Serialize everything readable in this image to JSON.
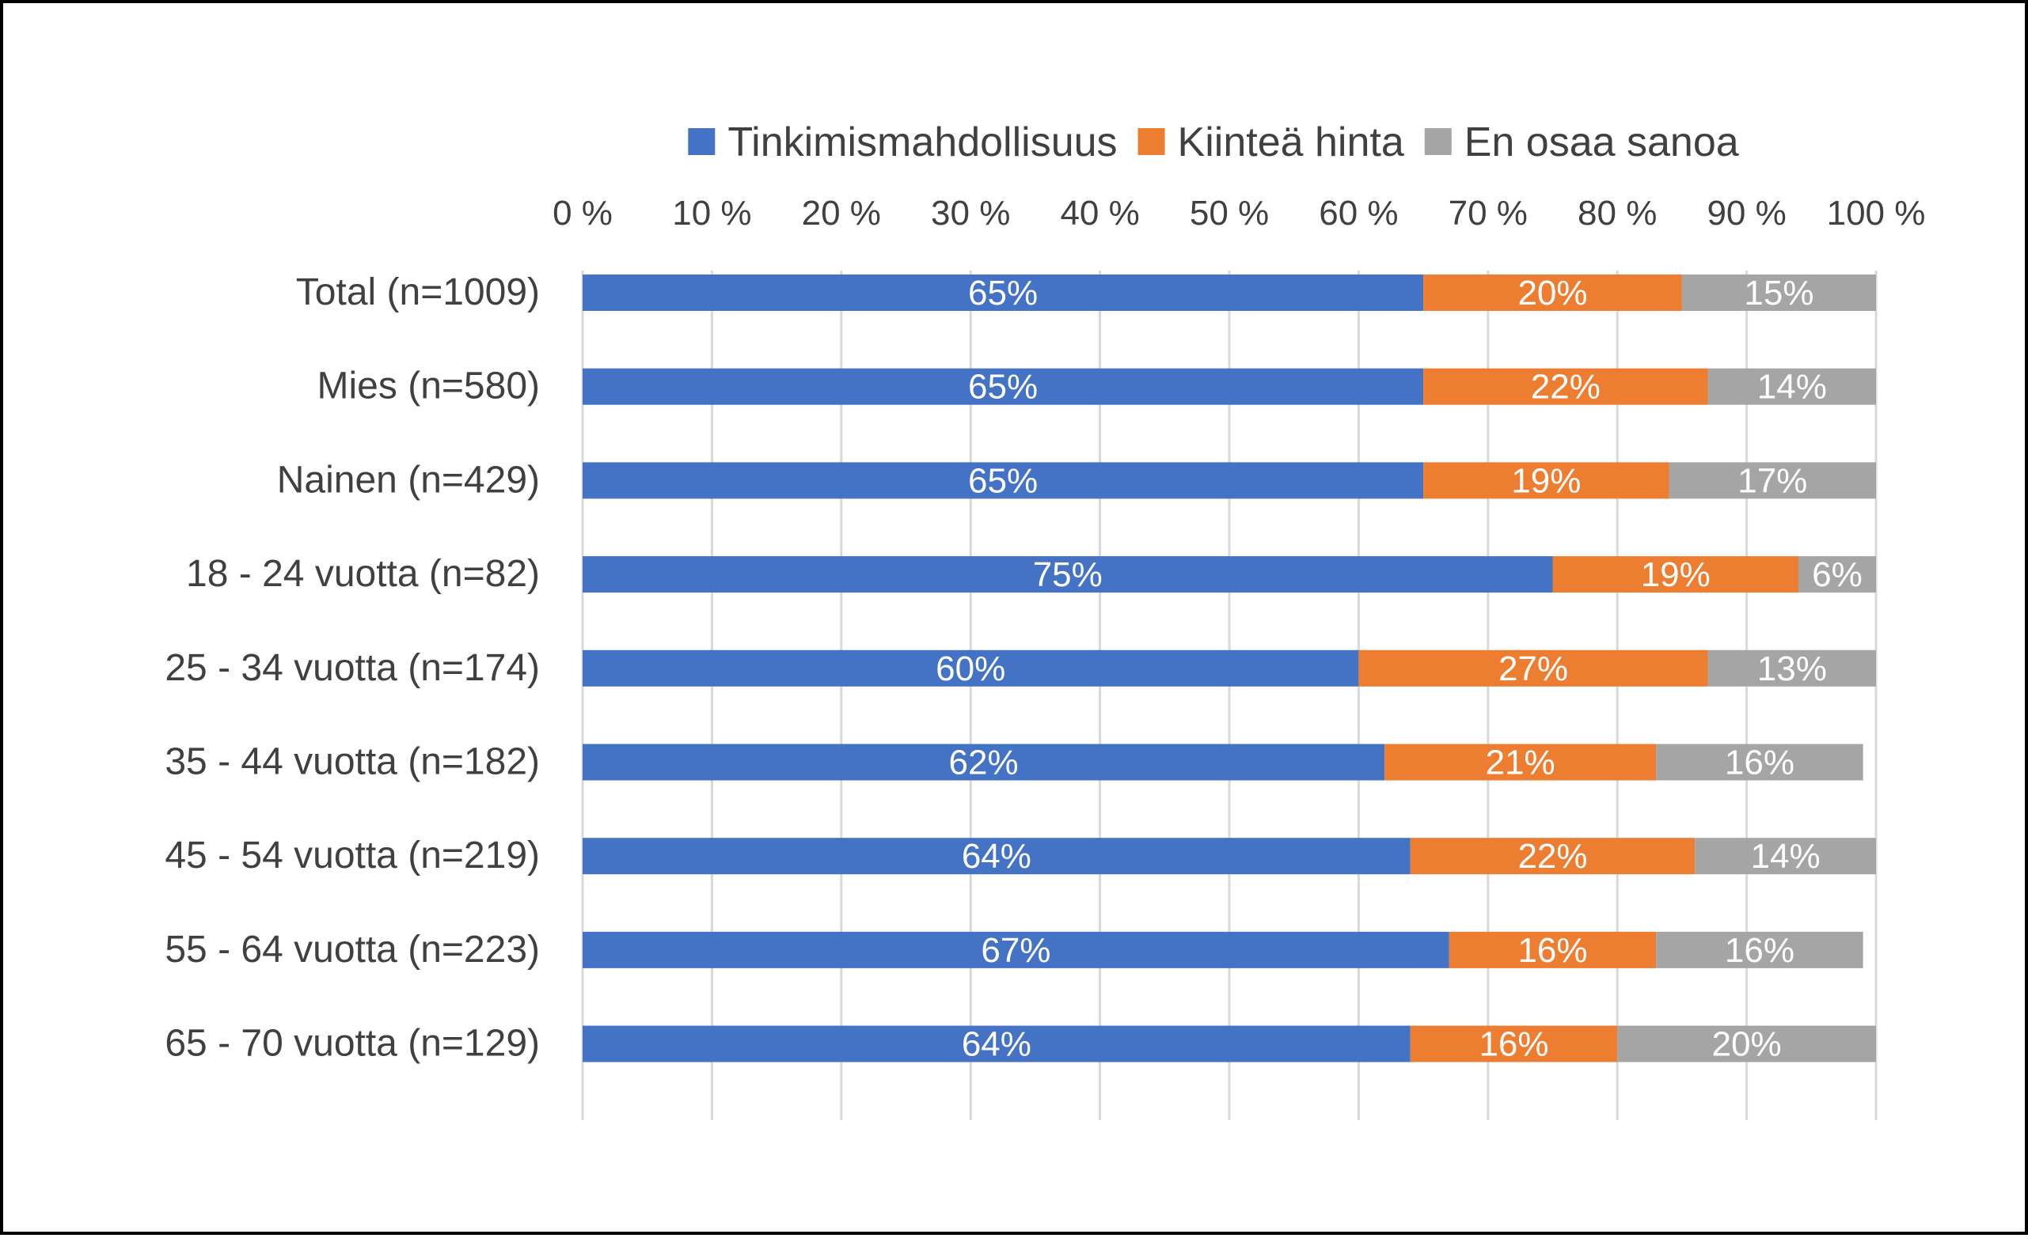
{
  "chart_data": {
    "type": "bar",
    "orientation": "horizontal",
    "stacked": "percent",
    "categories": [
      "Total (n=1009)",
      "Mies (n=580)",
      "Nainen (n=429)",
      "18 - 24 vuotta (n=82)",
      "25 - 34 vuotta (n=174)",
      "35 - 44 vuotta (n=182)",
      "45 - 54 vuotta (n=219)",
      "55 - 64 vuotta (n=223)",
      "65 - 70 vuotta (n=129)"
    ],
    "series": [
      {
        "name": "Tinkimismahdollisuus",
        "color": "#4472C4",
        "values": [
          65,
          65,
          65,
          75,
          60,
          62,
          64,
          67,
          64
        ],
        "labels": [
          "65%",
          "65%",
          "65%",
          "75%",
          "60%",
          "62%",
          "64%",
          "67%",
          "64%"
        ]
      },
      {
        "name": "Kiinteä hinta",
        "color": "#ED7D31",
        "values": [
          20,
          22,
          19,
          19,
          27,
          21,
          22,
          16,
          16
        ],
        "labels": [
          "20%",
          "22%",
          "19%",
          "19%",
          "27%",
          "21%",
          "22%",
          "16%",
          "16%"
        ]
      },
      {
        "name": "En osaa sanoa",
        "color": "#A5A5A5",
        "values": [
          15,
          14,
          17,
          6,
          13,
          16,
          14,
          16,
          20
        ],
        "labels": [
          "15%",
          "14%",
          "17%",
          "6%",
          "13%",
          "16%",
          "14%",
          "16%",
          "20%"
        ]
      }
    ],
    "xlim": [
      0,
      100
    ],
    "x_ticks": [
      "0 %",
      "10 %",
      "20 %",
      "30 %",
      "40 %",
      "50 %",
      "60 %",
      "70 %",
      "80 %",
      "90 %",
      "100 %"
    ],
    "x_axis_position": "top",
    "grid": true,
    "grid_color": "#D9D9D9",
    "legend_position": "top"
  }
}
